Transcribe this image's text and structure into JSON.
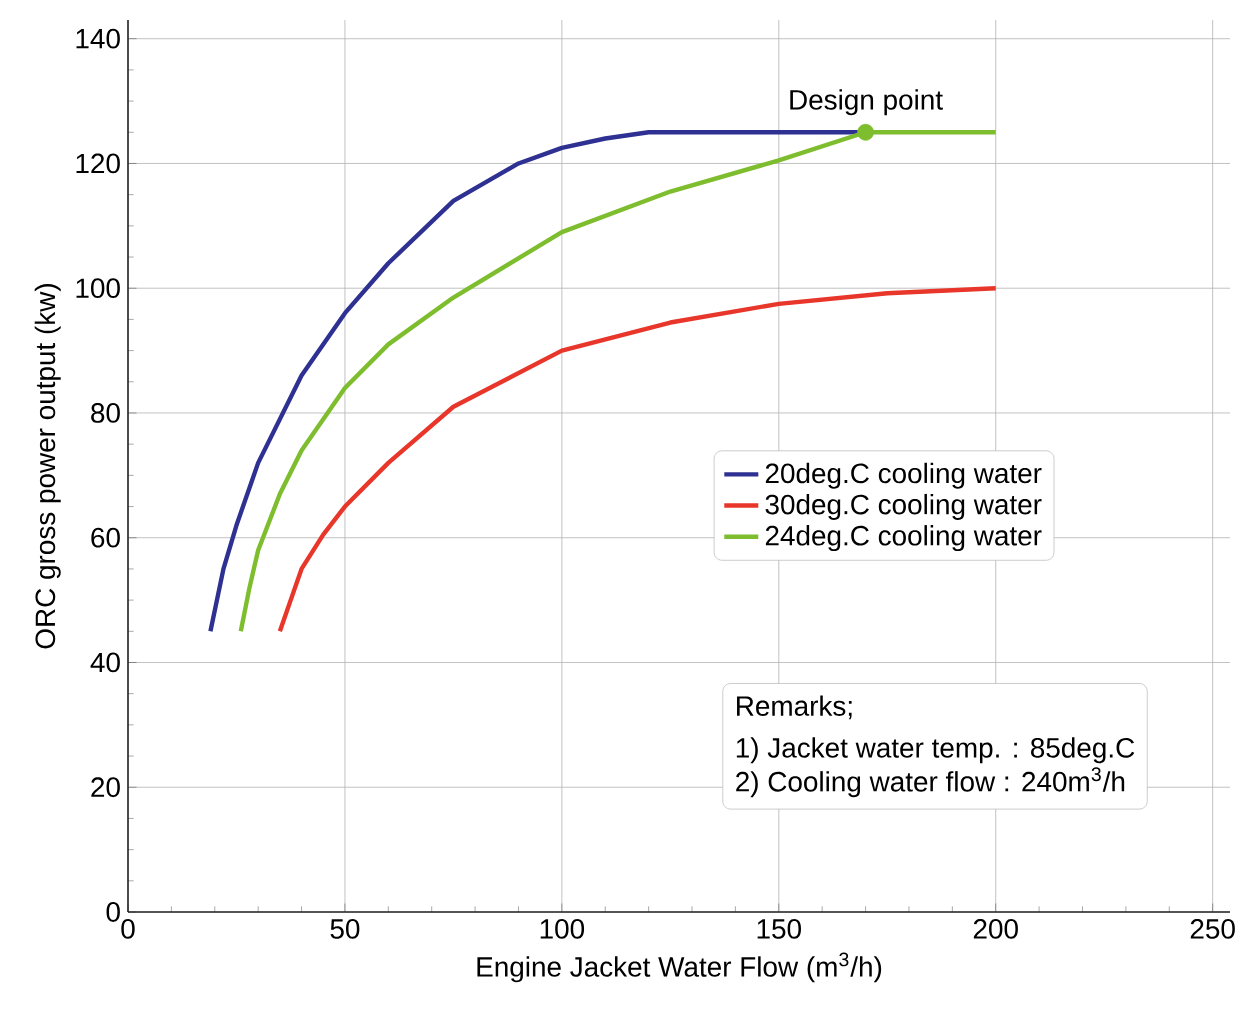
{
  "chart_data": {
    "type": "line",
    "xlabel": "Engine Jacket Water Flow (m$^{3}$/h)",
    "ylabel": "ORC gross power output (kw)",
    "xlim": [
      0,
      254
    ],
    "ylim": [
      0,
      143
    ],
    "xticks": [
      0,
      50,
      100,
      150,
      200,
      250
    ],
    "yticks": [
      0,
      20,
      40,
      60,
      80,
      100,
      120,
      140
    ],
    "grid": true,
    "legend": "right",
    "marker": "none",
    "line_style": "solid",
    "series": [
      {
        "name": "20deg.C cooling water",
        "color": "#2e3192",
        "x": [
          19,
          22,
          25,
          30,
          40,
          50,
          60,
          75,
          90,
          100,
          110,
          120,
          170
        ],
        "values": [
          45,
          55,
          62,
          72,
          86,
          96,
          104,
          114,
          120,
          122.5,
          124,
          125,
          125
        ]
      },
      {
        "name": "30deg.C cooling water",
        "color": "#e8362a",
        "x": [
          35,
          38,
          40,
          45,
          50,
          60,
          75,
          100,
          125,
          150,
          175,
          200
        ],
        "values": [
          45,
          51,
          55,
          60.5,
          65,
          72,
          81,
          90,
          94.5,
          97.5,
          99.2,
          100
        ]
      },
      {
        "name": "24deg.C cooling water",
        "color": "#7dbd2e",
        "x": [
          26,
          28,
          30,
          35,
          40,
          50,
          60,
          75,
          100,
          125,
          150,
          170,
          200
        ],
        "values": [
          45,
          52,
          58,
          67,
          74,
          84,
          91,
          98.5,
          109,
          115.5,
          120.5,
          125,
          125
        ]
      },
      {
        "type": "scatter",
        "marker": "circle",
        "color": "#7dbd2e",
        "x": [
          170
        ],
        "values": [
          125
        ]
      }
    ],
    "annotations": [
      {
        "text": "Design point",
        "x": 170,
        "y": 125
      },
      "Remarks;",
      "1) Jacket water temp. : 85deg.C",
      "2) Cooling water flow : 240m$^{3}$/h"
    ]
  }
}
